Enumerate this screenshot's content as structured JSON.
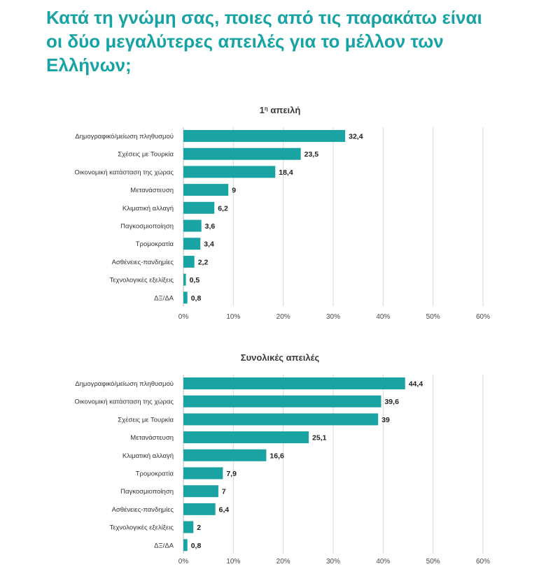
{
  "page": {
    "title_lines": [
      "Κατά τη γνώμη σας, ποιες από τις παρακάτω είναι",
      "οι δύο μεγαλύτερες απειλές για το μέλλον των",
      "Ελλήνων;"
    ]
  },
  "chart_data": [
    {
      "type": "bar",
      "orientation": "horizontal",
      "title": "1η απειλή",
      "categories": [
        "Δημογραφικό/μείωση πληθυσμού",
        "Σχέσεις με Τουρκία",
        "Οικονομική κατάσταση της χώρας",
        "Μετανάστευση",
        "Κλιματική αλλαγή",
        "Παγκοσμιοποίηση",
        "Τρομοκρατία",
        "Ασθένειες-πανδημίες",
        "Τεχνολογικές εξελίξεις",
        "ΔΞ/ΔΑ"
      ],
      "values": [
        32.4,
        23.5,
        18.4,
        9,
        6.2,
        3.6,
        3.4,
        2.2,
        0.5,
        0.8
      ],
      "value_labels": [
        "32,4",
        "23,5",
        "18,4",
        "9",
        "6,2",
        "3,6",
        "3,4",
        "2,2",
        "0,5",
        "0,8"
      ],
      "xlim": [
        0,
        60
      ],
      "xticks": [
        "0%",
        "10%",
        "20%",
        "30%",
        "40%",
        "50%",
        "60%"
      ],
      "grid": true,
      "color": "#1aa3a3"
    },
    {
      "type": "bar",
      "orientation": "horizontal",
      "title": "Συνολικές απειλές",
      "categories": [
        "Δημογραφικό/μείωση πληθυσμού",
        "Οικονομική κατάσταση της χώρας",
        "Σχέσεις με Τουρκία",
        "Μετανάστευση",
        "Κλιματική αλλαγή",
        "Τρομοκρατία",
        "Παγκοσμιοποίηση",
        "Ασθένειες-πανδημίες",
        "Τεχνολογικές εξελίξεις",
        "ΔΞ/ΔΑ"
      ],
      "values": [
        44.4,
        39.6,
        39,
        25.1,
        16.6,
        7.9,
        7,
        6.4,
        2,
        0.8
      ],
      "value_labels": [
        "44,4",
        "39,6",
        "39",
        "25,1",
        "16,6",
        "7,9",
        "7",
        "6,4",
        "2",
        "0,8"
      ],
      "xlim": [
        0,
        60
      ],
      "xticks": [
        "0%",
        "10%",
        "20%",
        "30%",
        "40%",
        "50%",
        "60%"
      ],
      "grid": true,
      "color": "#1aa3a3"
    }
  ]
}
